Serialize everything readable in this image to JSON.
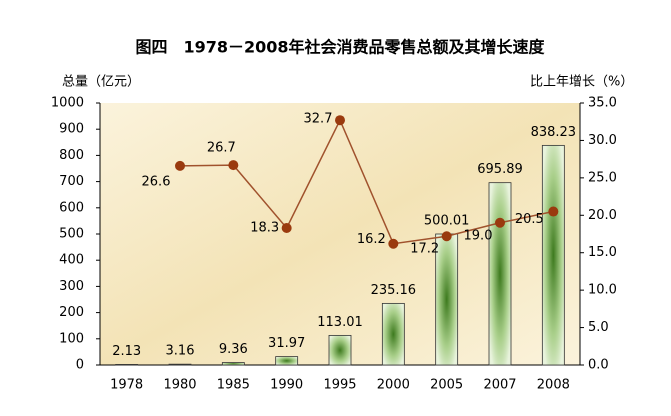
{
  "chart_data": {
    "type": "bar-line",
    "title": "图四　1978－2008年社会消费品零售总额及其增长速度",
    "ylabel": "总量（亿元）",
    "y2label": "比上年增长（%）",
    "categories": [
      "1978",
      "1980",
      "1985",
      "1990",
      "1995",
      "2000",
      "2005",
      "2007",
      "2008"
    ],
    "series": [
      {
        "type": "bar",
        "color": "#4f8a2e",
        "values": [
          2.13,
          3.16,
          9.36,
          31.97,
          113.01,
          235.16,
          500.01,
          695.89,
          838.23
        ]
      },
      {
        "type": "line",
        "axis": "y2",
        "color": "#a0522d",
        "values": [
          null,
          26.6,
          26.7,
          18.3,
          32.7,
          16.2,
          17.2,
          19,
          20.5
        ],
        "value_labels": [
          null,
          "26.6",
          "26.7",
          "18.3",
          "32.7",
          "16.2",
          "17.2",
          "19.0",
          "20.5"
        ]
      }
    ],
    "ylim": [
      0,
      1000
    ],
    "yticks": [
      0,
      100,
      200,
      300,
      400,
      500,
      600,
      700,
      800,
      900,
      1000
    ],
    "y2lim": [
      0,
      35
    ],
    "y2ticks": [
      {
        "value": 0,
        "label": "0.0"
      },
      {
        "value": 5,
        "label": "5.0"
      },
      {
        "value": 10,
        "label": "10.0"
      },
      {
        "value": 15,
        "label": "15.0"
      },
      {
        "value": 20,
        "label": "20.0"
      },
      {
        "value": 25,
        "label": "25.0"
      },
      {
        "value": 30,
        "label": "30.0"
      },
      {
        "value": 35,
        "label": "35.0"
      }
    ]
  }
}
